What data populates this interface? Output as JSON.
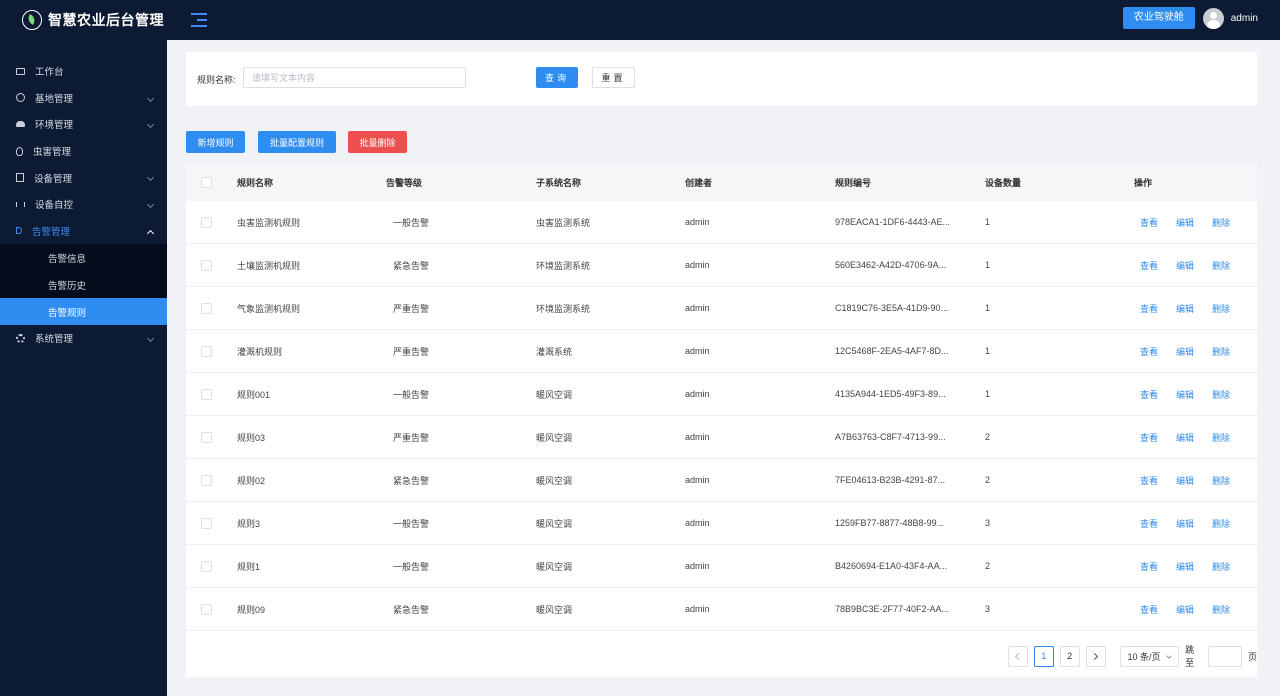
{
  "header": {
    "app_title": "智慧农业后台管理",
    "cockpit_label": "农业驾驶舱",
    "username": "admin"
  },
  "sidebar": {
    "items": [
      {
        "label": "工作台",
        "icon": "monitor-icon"
      },
      {
        "label": "基地管理",
        "icon": "globe-icon"
      },
      {
        "label": "环境管理",
        "icon": "cloud-icon"
      },
      {
        "label": "虫害管理",
        "icon": "bug-icon"
      },
      {
        "label": "设备管理",
        "icon": "document-icon"
      },
      {
        "label": "设备自控",
        "icon": "branch-icon"
      },
      {
        "label": "告警管理",
        "icon": "bell-icon"
      },
      {
        "label": "系统管理",
        "icon": "gear-icon"
      }
    ],
    "alarm_submenu": [
      "告警信息",
      "告警历史",
      "告警规则"
    ],
    "active_sub": "告警规则"
  },
  "filter": {
    "label": "规则名称:",
    "placeholder": "请填写文本内容",
    "query_label": "查询",
    "reset_label": "重置"
  },
  "actions": {
    "add_label": "新增规则",
    "batch_label": "批量配置规则",
    "delete_label": "批量删除"
  },
  "table": {
    "columns": [
      "规则名称",
      "告警等级",
      "子系统名称",
      "创建者",
      "规则编号",
      "设备数量",
      "操作"
    ],
    "rows": [
      {
        "name": "虫害监测机规则",
        "level": "一般告警",
        "subsystem": "虫害监测系统",
        "creator": "admin",
        "code": "978EACA1-1DF6-4443-AE...",
        "count": "1"
      },
      {
        "name": "土壤监测机规则",
        "level": "紧急告警",
        "subsystem": "环境监测系统",
        "creator": "admin",
        "code": "560E3462-A42D-4706-9A...",
        "count": "1"
      },
      {
        "name": "气象监测机规则",
        "level": "严重告警",
        "subsystem": "环境监测系统",
        "creator": "admin",
        "code": "C1819C76-3E5A-41D9-90...",
        "count": "1"
      },
      {
        "name": "灌溉机规则",
        "level": "严重告警",
        "subsystem": "灌溉系统",
        "creator": "admin",
        "code": "12C5468F-2EA5-4AF7-8D...",
        "count": "1"
      },
      {
        "name": "规则001",
        "level": "一般告警",
        "subsystem": "暖风空调",
        "creator": "admin",
        "code": "4135A944-1ED5-49F3-89...",
        "count": "1"
      },
      {
        "name": "规则03",
        "level": "严重告警",
        "subsystem": "暖风空调",
        "creator": "admin",
        "code": "A7B63763-C8F7-4713-99...",
        "count": "2"
      },
      {
        "name": "规则02",
        "level": "紧急告警",
        "subsystem": "暖风空调",
        "creator": "admin",
        "code": "7FE04613-B23B-4291-87...",
        "count": "2"
      },
      {
        "name": "规则3",
        "level": "一般告警",
        "subsystem": "暖风空调",
        "creator": "admin",
        "code": "1259FB77-8877-48B8-99...",
        "count": "3"
      },
      {
        "name": "规则1",
        "level": "一般告警",
        "subsystem": "暖风空调",
        "creator": "admin",
        "code": "B4260694-E1A0-43F4-AA...",
        "count": "2"
      },
      {
        "name": "规则09",
        "level": "紧急告警",
        "subsystem": "暖风空调",
        "creator": "admin",
        "code": "78B9BC3E-2F77-40F2-AA...",
        "count": "3"
      }
    ],
    "ops": [
      "查看",
      "编辑",
      "删除"
    ]
  },
  "pagination": {
    "pages": [
      "1",
      "2"
    ],
    "current_page": "1",
    "page_size_label": "10 条/页",
    "jump_label": "跳至",
    "unit_label": "页"
  },
  "colors": {
    "sidebar_bg": "#0c1a33",
    "primary": "#2f8cf0",
    "danger": "#ed4f4f"
  }
}
